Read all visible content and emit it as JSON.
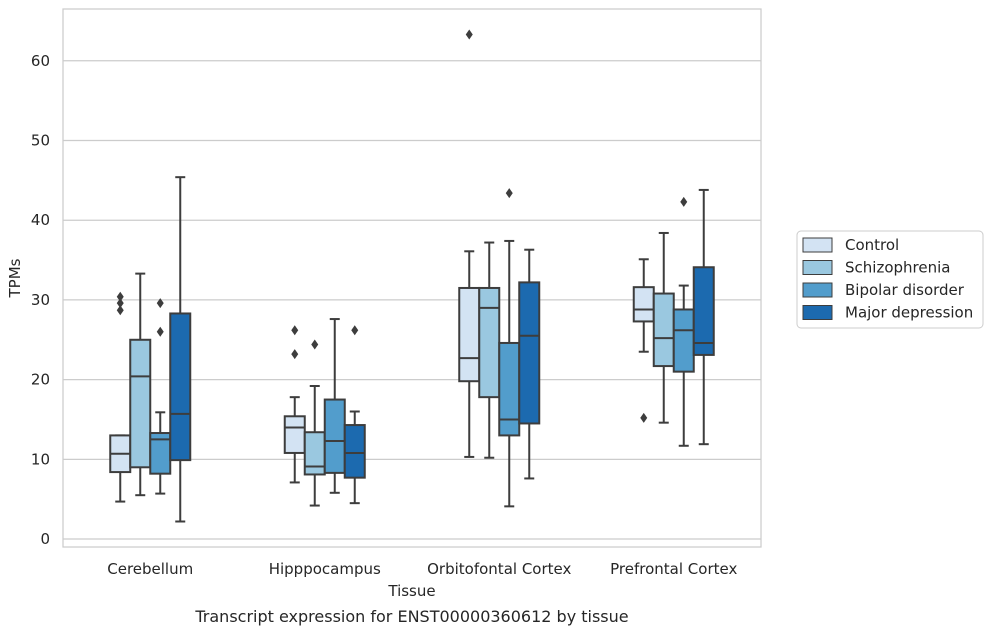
{
  "chart_data": {
    "type": "box",
    "title": "",
    "caption": "Transcript expression for ENST00000360612 by tissue",
    "xlabel": "Tissue",
    "ylabel": "TPMs",
    "ylim": [
      -1,
      66.5
    ],
    "yticks": [
      0,
      10,
      20,
      30,
      40,
      50,
      60
    ],
    "grid": "horizontal",
    "legend_position": "right",
    "categories": [
      "Cerebellum",
      "Hipppocampus",
      "Orbitofontal Cortex",
      "Prefrontal Cortex"
    ],
    "series": [
      {
        "name": "Control",
        "color": "#d3e3f3",
        "boxes": [
          {
            "whislo": 4.7,
            "q1": 8.4,
            "med": 10.7,
            "q3": 13.0,
            "whishi": 13.0,
            "fliers": [
              28.7,
              29.6,
              30.4
            ]
          },
          {
            "whislo": 7.1,
            "q1": 10.8,
            "med": 14.0,
            "q3": 15.4,
            "whishi": 17.8,
            "fliers": [
              23.2,
              26.2
            ]
          },
          {
            "whislo": 10.3,
            "q1": 19.8,
            "med": 22.7,
            "q3": 31.5,
            "whishi": 36.1,
            "fliers": [
              63.3
            ]
          },
          {
            "whislo": 23.5,
            "q1": 27.3,
            "med": 28.8,
            "q3": 31.6,
            "whishi": 35.1,
            "fliers": [
              15.2
            ]
          }
        ]
      },
      {
        "name": "Schizophrenia",
        "color": "#9ac8e0",
        "boxes": [
          {
            "whislo": 5.5,
            "q1": 9.0,
            "med": 20.4,
            "q3": 25.0,
            "whishi": 33.3,
            "fliers": []
          },
          {
            "whislo": 4.2,
            "q1": 8.1,
            "med": 9.1,
            "q3": 13.4,
            "whishi": 19.2,
            "fliers": [
              24.4
            ]
          },
          {
            "whislo": 10.2,
            "q1": 17.8,
            "med": 29.0,
            "q3": 31.5,
            "whishi": 37.2,
            "fliers": []
          },
          {
            "whislo": 14.6,
            "q1": 21.7,
            "med": 25.2,
            "q3": 30.8,
            "whishi": 38.4,
            "fliers": []
          }
        ]
      },
      {
        "name": "Bipolar disorder",
        "color": "#529dcc",
        "boxes": [
          {
            "whislo": 5.7,
            "q1": 8.2,
            "med": 12.5,
            "q3": 13.3,
            "whishi": 15.9,
            "fliers": [
              26.0,
              29.6
            ]
          },
          {
            "whislo": 5.8,
            "q1": 8.3,
            "med": 12.3,
            "q3": 17.5,
            "whishi": 27.6,
            "fliers": []
          },
          {
            "whislo": 4.1,
            "q1": 13.0,
            "med": 15.0,
            "q3": 24.6,
            "whishi": 37.4,
            "fliers": [
              43.4
            ]
          },
          {
            "whislo": 11.7,
            "q1": 21.0,
            "med": 26.2,
            "q3": 28.8,
            "whishi": 31.8,
            "fliers": [
              42.3
            ]
          }
        ]
      },
      {
        "name": "Major depression",
        "color": "#1c6aaf",
        "boxes": [
          {
            "whislo": 2.2,
            "q1": 9.9,
            "med": 15.7,
            "q3": 28.3,
            "whishi": 45.4,
            "fliers": []
          },
          {
            "whislo": 4.5,
            "q1": 7.7,
            "med": 10.8,
            "q3": 14.3,
            "whishi": 16.0,
            "fliers": [
              26.2
            ]
          },
          {
            "whislo": 7.6,
            "q1": 14.5,
            "med": 25.5,
            "q3": 32.2,
            "whishi": 36.3,
            "fliers": []
          },
          {
            "whislo": 11.9,
            "q1": 23.1,
            "med": 24.6,
            "q3": 34.1,
            "whishi": 43.8,
            "fliers": []
          }
        ]
      }
    ]
  }
}
